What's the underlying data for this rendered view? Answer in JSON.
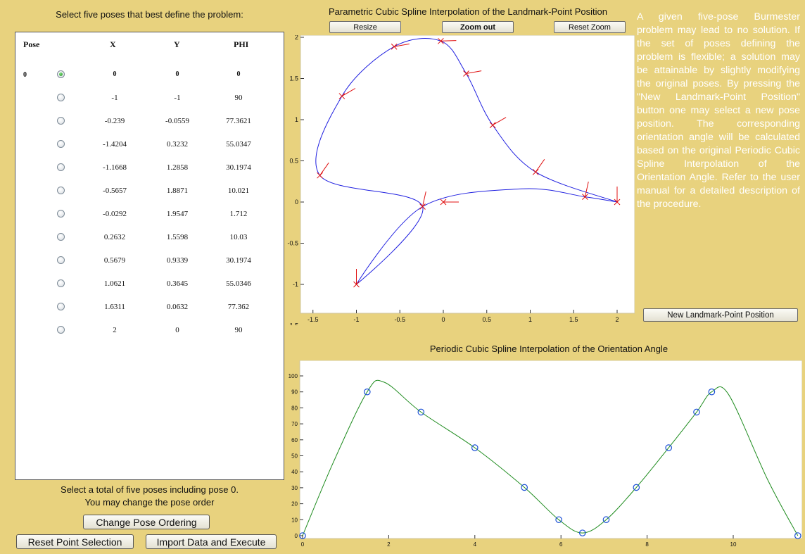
{
  "left_panel": {
    "title": "Select five poses that best define the problem:",
    "headers": [
      "Pose",
      "X",
      "Y",
      "PHI"
    ],
    "rows": [
      {
        "pose": "0",
        "x": "0",
        "y": "0",
        "phi": "0",
        "selected": true
      },
      {
        "pose": "",
        "x": "-1",
        "y": "-1",
        "phi": "90",
        "selected": false
      },
      {
        "pose": "",
        "x": "-0.239",
        "y": "-0.0559",
        "phi": "77.3621",
        "selected": false
      },
      {
        "pose": "",
        "x": "-1.4204",
        "y": "0.3232",
        "phi": "55.0347",
        "selected": false
      },
      {
        "pose": "",
        "x": "-1.1668",
        "y": "1.2858",
        "phi": "30.1974",
        "selected": false
      },
      {
        "pose": "",
        "x": "-0.5657",
        "y": "1.8871",
        "phi": "10.021",
        "selected": false
      },
      {
        "pose": "",
        "x": "-0.0292",
        "y": "1.9547",
        "phi": "1.712",
        "selected": false
      },
      {
        "pose": "",
        "x": "0.2632",
        "y": "1.5598",
        "phi": "10.03",
        "selected": false
      },
      {
        "pose": "",
        "x": "0.5679",
        "y": "0.9339",
        "phi": "30.1974",
        "selected": false
      },
      {
        "pose": "",
        "x": "1.0621",
        "y": "0.3645",
        "phi": "55.0346",
        "selected": false
      },
      {
        "pose": "",
        "x": "1.6311",
        "y": "0.0632",
        "phi": "77.362",
        "selected": false
      },
      {
        "pose": "",
        "x": "2",
        "y": "0",
        "phi": "90",
        "selected": false
      }
    ],
    "hint_line1": "Select a total of five poses including pose 0.",
    "hint_line2": "You may change the pose order",
    "change_order_label": "Change Pose Ordering",
    "reset_selection_label": "Reset Point Selection",
    "import_execute_label": "Import Data and Execute"
  },
  "top_plot": {
    "title": "Parametric Cubic Spline Interpolation of the Landmark-Point Position",
    "resize_label": "Resize",
    "zoom_out_label": "Zoom out",
    "reset_zoom_label": "Reset Zoom"
  },
  "description": {
    "text": "A given five-pose Burmester problem may lead to no solution. If the set of poses defining the problem is flexible; a solution may be attainable by slightly modifying the original poses. By pressing the \"New Landmark-Point Position\" button one may select a new pose position. The corresponding orientation angle will be calculated based on the original Periodic Cubic Spline Interpolation of the Orientation Angle. Refer to the user manual for a detailed description of the procedure.",
    "new_point_label": "New Landmark-Point Position"
  },
  "bottom_plot": {
    "title": "Periodic Cubic Spline Interpolation of the Orientation Angle"
  },
  "colors": {
    "background": "#e8d27e",
    "curve_blue": "#1f1fe0",
    "marker_red": "#e01010",
    "curve_green": "#1f8c1f",
    "marker_blue": "#1a4fd6"
  },
  "chart_data": [
    {
      "type": "line",
      "title": "Parametric Cubic Spline Interpolation of the Landmark-Point Position",
      "xlim": [
        -1.6,
        2.1
      ],
      "ylim": [
        -1.6,
        2.1
      ],
      "xticks": [
        "-1.5",
        "-1",
        "-0.5",
        "0",
        "0.5",
        "1",
        "1.5",
        "2"
      ],
      "yticks": [
        "-1.5",
        "-1",
        "-0.5",
        "0",
        "0.5",
        "1",
        "1.5",
        "2"
      ],
      "grid": false,
      "series": [
        {
          "points": [
            [
              0,
              0
            ],
            [
              -1,
              -1
            ],
            [
              -0.239,
              -0.0559
            ],
            [
              -1.4204,
              0.3232
            ],
            [
              -1.1668,
              1.2858
            ],
            [
              -0.5657,
              1.8871
            ],
            [
              -0.0292,
              1.9547
            ],
            [
              0.2632,
              1.5598
            ],
            [
              0.5679,
              0.9339
            ],
            [
              1.0621,
              0.3645
            ],
            [
              1.6311,
              0.0632
            ],
            [
              2,
              0
            ]
          ],
          "angles": [
            0,
            90,
            77.3621,
            55.0347,
            30.1974,
            10.021,
            1.712,
            10.03,
            30.1974,
            55.0346,
            77.362,
            90
          ]
        }
      ]
    },
    {
      "type": "line",
      "title": "Periodic Cubic Spline Interpolation of the Orientation Angle",
      "xlim": [
        0,
        11.5
      ],
      "ylim": [
        0,
        105
      ],
      "xticks": [
        "0",
        "2",
        "4",
        "6",
        "8",
        "10"
      ],
      "yticks": [
        "0",
        "10",
        "20",
        "30",
        "40",
        "50",
        "60",
        "70",
        "80",
        "90",
        "100"
      ],
      "grid": false,
      "series": [
        {
          "x": [
            0,
            1.5,
            2.75,
            4,
            5.15,
            5.95,
            6.5,
            7.05,
            7.75,
            8.5,
            9.15,
            9.5,
            11.5
          ],
          "y": [
            0,
            90,
            77.36,
            55.03,
            30.2,
            10.02,
            1.71,
            10.03,
            30.2,
            55.03,
            77.36,
            90,
            0
          ]
        }
      ]
    }
  ]
}
